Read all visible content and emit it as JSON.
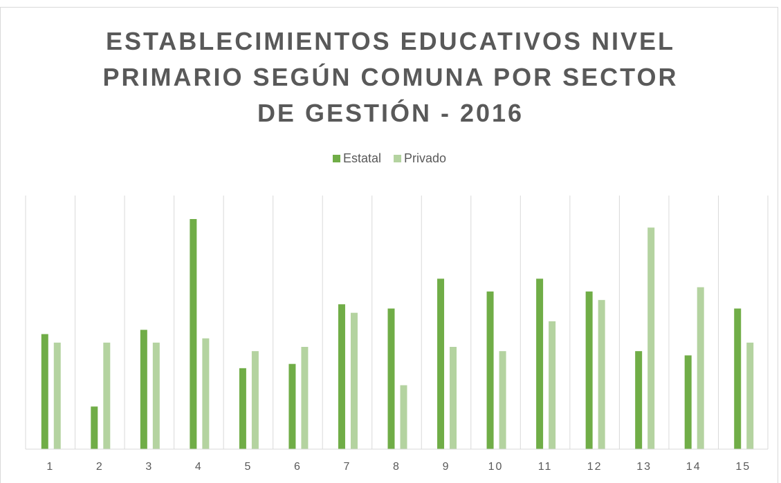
{
  "chart_data": {
    "type": "bar",
    "title": "ESTABLECIMIENTOS EDUCATIVOS NIVEL\nPRIMARIO SEGÚN COMUNA POR SECTOR\nDE GESTIÓN - 2016",
    "categories": [
      "1",
      "2",
      "3",
      "4",
      "5",
      "6",
      "7",
      "8",
      "9",
      "10",
      "11",
      "12",
      "13",
      "14",
      "15"
    ],
    "series": [
      {
        "name": "Estatal",
        "color": "#70ad47",
        "values": [
          27,
          10,
          28,
          54,
          19,
          20,
          34,
          33,
          40,
          37,
          40,
          37,
          23,
          22,
          33
        ]
      },
      {
        "name": "Privado",
        "color": "#b4d3a0",
        "values": [
          25,
          25,
          25,
          26,
          23,
          24,
          32,
          15,
          24,
          23,
          30,
          35,
          52,
          38,
          25
        ]
      }
    ],
    "ylim": [
      0,
      60
    ],
    "legend": "top",
    "grid": "vertical"
  }
}
